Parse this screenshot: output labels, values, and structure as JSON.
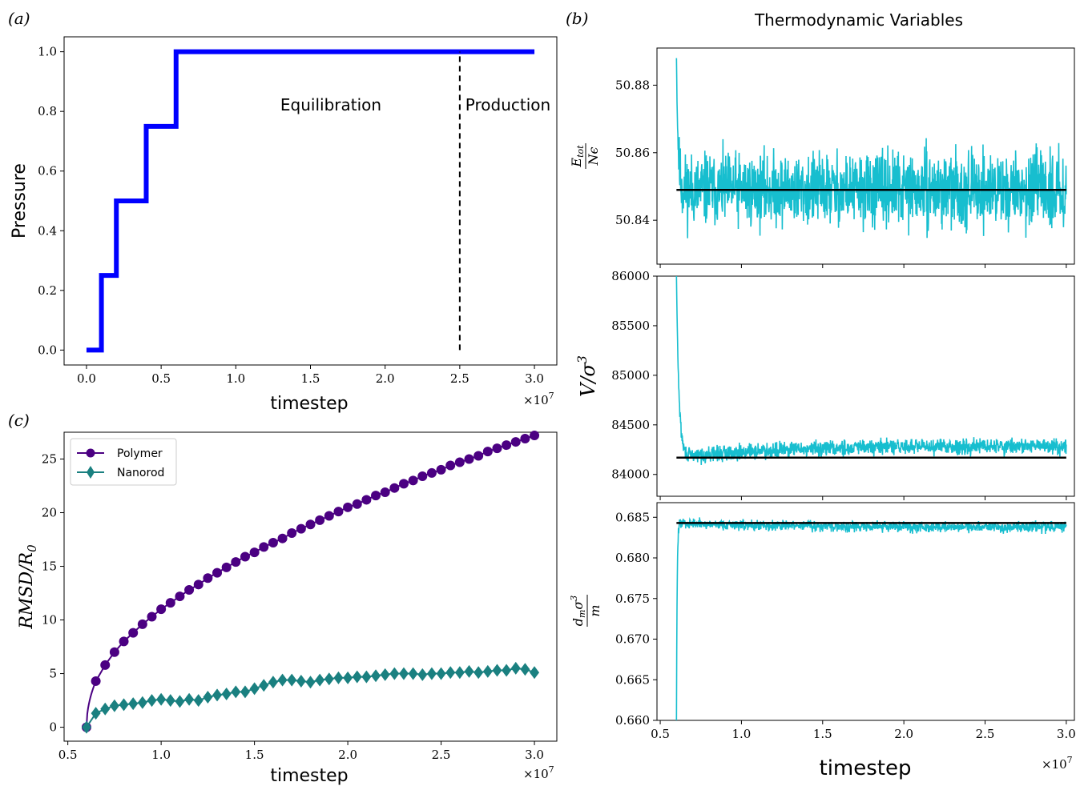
{
  "figure_title": "Thermodynamic Variables",
  "colors": {
    "pressure_line": "#0000ff",
    "thermo_trace": "#17becf",
    "thermo_mean": "#000000",
    "polymer": "#4b0082",
    "nanorod": "#1a8080"
  },
  "chart_data": [
    {
      "id": "a",
      "panel_label": "(a)",
      "type": "line",
      "xlabel": "timestep",
      "ylabel": "Pressure",
      "x_multiplier": "×10^7",
      "xlim": [
        -0.15,
        3.15
      ],
      "ylim": [
        -0.05,
        1.05
      ],
      "xticks": [
        0.0,
        0.5,
        1.0,
        1.5,
        2.0,
        2.5,
        3.0
      ],
      "yticks": [
        0.0,
        0.2,
        0.4,
        0.6,
        0.8,
        1.0
      ],
      "series": [
        {
          "style": "step",
          "x": [
            0.0,
            0.1,
            0.1,
            0.2,
            0.2,
            0.4,
            0.4,
            0.6,
            0.6,
            3.0
          ],
          "y": [
            0.0,
            0.0,
            0.25,
            0.25,
            0.5,
            0.5,
            0.75,
            0.75,
            1.0,
            1.0
          ]
        }
      ],
      "vline": {
        "x": 2.5,
        "y": [
          0.0,
          1.0
        ],
        "style": "dashed"
      },
      "annotations": [
        {
          "text": "Equilibration",
          "x": 1.65,
          "y": 0.82
        },
        {
          "text": "Production",
          "x": 2.85,
          "y": 0.82
        }
      ]
    },
    {
      "id": "b_top",
      "panel_label": "(b)",
      "type": "line",
      "ylabel": "E_tot / Nε",
      "xlim": [
        0.48,
        3.05
      ],
      "ylim": [
        50.827,
        50.891
      ],
      "xticks": [
        0.5,
        1.0,
        1.5,
        2.0,
        2.5,
        3.0
      ],
      "yticks": [
        50.84,
        50.86,
        50.88
      ],
      "trace": {
        "start": 0.6,
        "end": 3.0,
        "initial": 50.888,
        "mean": 50.849,
        "amplitude": 0.0075,
        "relax": 0.01
      },
      "mean_line": 50.849
    },
    {
      "id": "b_mid",
      "type": "line",
      "ylabel": "V / σ^3",
      "xlim": [
        0.48,
        3.05
      ],
      "ylim": [
        83780,
        86000
      ],
      "xticks": [
        0.5,
        1.0,
        1.5,
        2.0,
        2.5,
        3.0
      ],
      "yticks": [
        84000,
        84500,
        85000,
        85500,
        86000
      ],
      "trace": {
        "start": 0.6,
        "end": 3.0,
        "initial": 86000,
        "mean": 84170,
        "amplitude": 55,
        "relax": 0.015,
        "drift": 120
      },
      "mean_line": 84170
    },
    {
      "id": "b_bot",
      "type": "line",
      "xlabel": "timestep",
      "ylabel": "d_m σ^3 / m",
      "x_multiplier": "×10^7",
      "xlim": [
        0.48,
        3.05
      ],
      "ylim": [
        0.66,
        0.6868
      ],
      "xticks": [
        0.5,
        1.0,
        1.5,
        2.0,
        2.5,
        3.0
      ],
      "yticks": [
        0.66,
        0.665,
        0.67,
        0.675,
        0.68,
        0.685
      ],
      "trace": {
        "start": 0.6,
        "end": 3.0,
        "initial": 0.66,
        "mean": 0.6843,
        "amplitude": 0.00045,
        "relax": 0.004,
        "drift": -0.0005
      },
      "mean_line": 0.6843
    },
    {
      "id": "c",
      "panel_label": "(c)",
      "type": "line",
      "xlabel": "timestep",
      "ylabel": "RMSD / R_0",
      "x_multiplier": "×10^7",
      "xlim": [
        0.48,
        3.12
      ],
      "ylim": [
        -1.3,
        27.5
      ],
      "xticks": [
        0.5,
        1.0,
        1.5,
        2.0,
        2.5,
        3.0
      ],
      "yticks": [
        0,
        5,
        10,
        15,
        20,
        25
      ],
      "legend": "top-left",
      "series": [
        {
          "name": "Polymer",
          "marker": "circle",
          "x": [
            0.6,
            0.65,
            0.7,
            0.75,
            0.8,
            0.85,
            0.9,
            0.95,
            1.0,
            1.05,
            1.1,
            1.15,
            1.2,
            1.25,
            1.3,
            1.35,
            1.4,
            1.45,
            1.5,
            1.55,
            1.6,
            1.65,
            1.7,
            1.75,
            1.8,
            1.85,
            1.9,
            1.95,
            2.0,
            2.05,
            2.1,
            2.15,
            2.2,
            2.25,
            2.3,
            2.35,
            2.4,
            2.45,
            2.5,
            2.55,
            2.6,
            2.65,
            2.7,
            2.75,
            2.8,
            2.85,
            2.9,
            2.95,
            3.0
          ],
          "y": [
            0.0,
            4.3,
            5.8,
            7.0,
            8.0,
            8.8,
            9.6,
            10.3,
            11.0,
            11.6,
            12.2,
            12.8,
            13.3,
            13.9,
            14.4,
            14.9,
            15.4,
            15.9,
            16.3,
            16.8,
            17.2,
            17.6,
            18.1,
            18.5,
            18.9,
            19.3,
            19.7,
            20.1,
            20.5,
            20.8,
            21.2,
            21.6,
            21.9,
            22.3,
            22.7,
            23.0,
            23.4,
            23.7,
            24.0,
            24.4,
            24.7,
            25.0,
            25.3,
            25.7,
            26.0,
            26.3,
            26.6,
            26.9,
            27.2
          ]
        },
        {
          "name": "Nanorod",
          "marker": "diamond",
          "x": [
            0.6,
            0.65,
            0.7,
            0.75,
            0.8,
            0.85,
            0.9,
            0.95,
            1.0,
            1.05,
            1.1,
            1.15,
            1.2,
            1.25,
            1.3,
            1.35,
            1.4,
            1.45,
            1.5,
            1.55,
            1.6,
            1.65,
            1.7,
            1.75,
            1.8,
            1.85,
            1.9,
            1.95,
            2.0,
            2.05,
            2.1,
            2.15,
            2.2,
            2.25,
            2.3,
            2.35,
            2.4,
            2.45,
            2.5,
            2.55,
            2.6,
            2.65,
            2.7,
            2.75,
            2.8,
            2.85,
            2.9,
            2.95,
            3.0
          ],
          "y": [
            0.0,
            1.3,
            1.7,
            2.0,
            2.1,
            2.2,
            2.3,
            2.5,
            2.6,
            2.5,
            2.4,
            2.6,
            2.5,
            2.8,
            3.0,
            3.1,
            3.3,
            3.3,
            3.6,
            3.9,
            4.2,
            4.4,
            4.4,
            4.3,
            4.2,
            4.4,
            4.5,
            4.6,
            4.6,
            4.7,
            4.7,
            4.8,
            4.9,
            5.0,
            5.0,
            5.0,
            4.9,
            5.0,
            5.0,
            5.1,
            5.1,
            5.2,
            5.1,
            5.2,
            5.3,
            5.3,
            5.5,
            5.4,
            5.1
          ]
        }
      ]
    }
  ]
}
